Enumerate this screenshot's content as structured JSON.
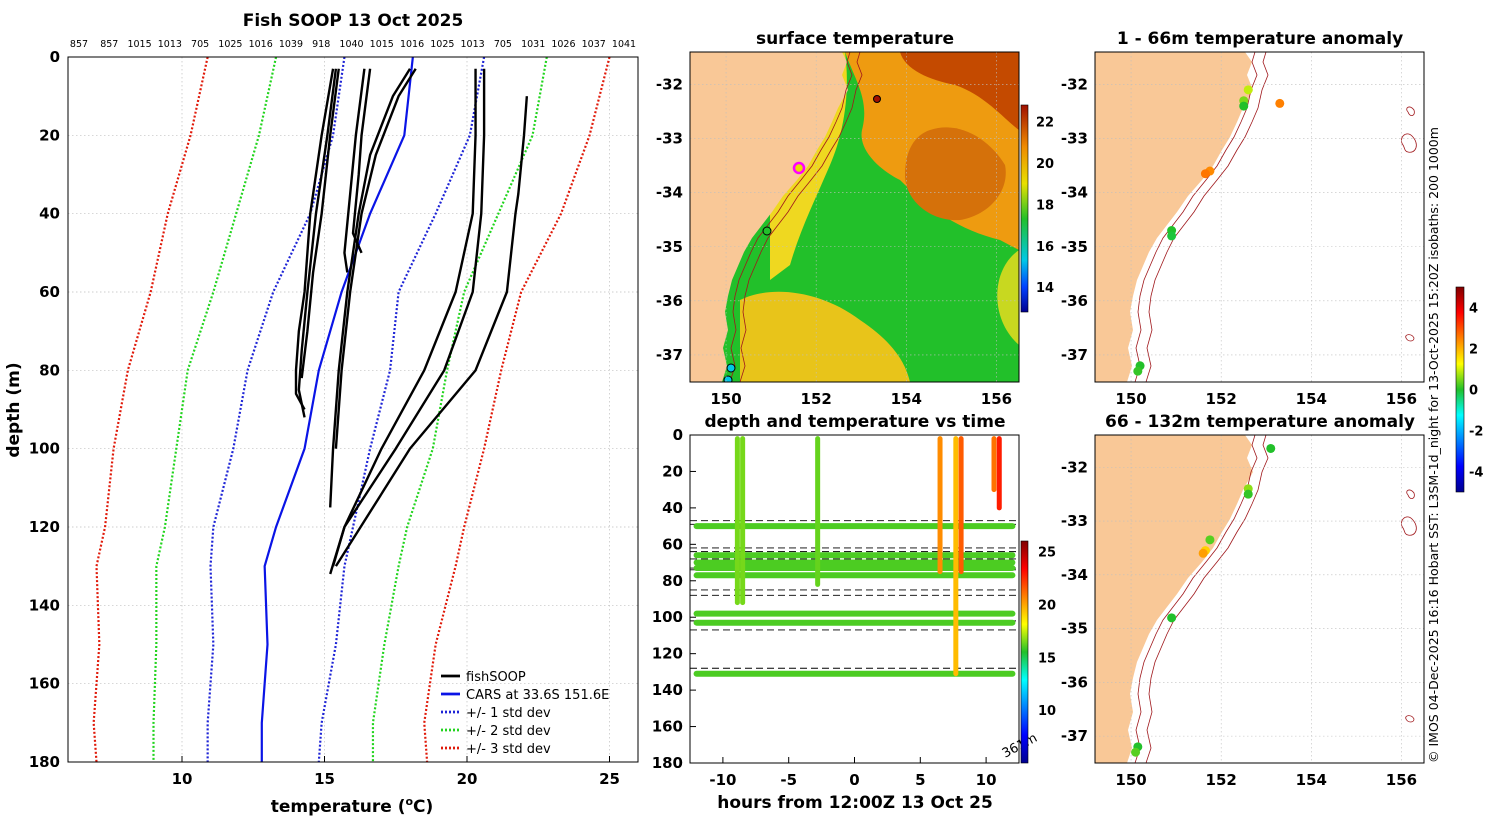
{
  "colors": {
    "land": "#f9c897",
    "axis": "#000000",
    "grid": "#bfbfbf",
    "fishsoop": "#000000",
    "cars": "#0a14e6",
    "std1": "#1e24d6",
    "std2": "#22d41e",
    "std3": "#e01a0a",
    "isobath": "#a0181c"
  },
  "chart_data": [
    {
      "id": "profile",
      "type": "line",
      "title": "Fish SOOP 13 Oct 2025",
      "xlabel": "temperature (°C)",
      "xlabel_main": "temperature (",
      "xlabel_sup": "o",
      "xlabel_end": "C)",
      "ylabel": "depth (m)",
      "xlim": [
        6,
        26
      ],
      "ylim": [
        0,
        180
      ],
      "xticks": [
        "10",
        "15",
        "20",
        "25"
      ],
      "xtick_values": [
        10,
        15,
        20,
        25
      ],
      "yticks": [
        "0",
        "20",
        "40",
        "60",
        "80",
        "100",
        "120",
        "140",
        "160",
        "180"
      ],
      "ytick_values": [
        0,
        20,
        40,
        60,
        80,
        100,
        120,
        140,
        160,
        180
      ],
      "top_ids": [
        "857",
        "857",
        "1015",
        "1013",
        "705",
        "1025",
        "1016",
        "1039",
        "918",
        "1040",
        "1015",
        "1016",
        "1025",
        "1013",
        "705",
        "1031",
        "1026",
        "1037",
        "1041"
      ],
      "legend": [
        {
          "label": "fishSOOP",
          "style": "solid",
          "color": "#000000"
        },
        {
          "label": "CARS at 33.6S 151.6E",
          "style": "solid",
          "color": "#0a14e6"
        },
        {
          "label": "+/- 1 std dev",
          "style": "dotted",
          "color": "#1e24d6"
        },
        {
          "label": "+/- 2 std dev",
          "style": "dotted",
          "color": "#22d41e"
        },
        {
          "label": "+/- 3 std dev",
          "style": "dotted",
          "color": "#e01a0a"
        }
      ],
      "series": [
        {
          "name": "CARS at 33.6S 151.6E",
          "depth": [
            0,
            20,
            40,
            60,
            80,
            100,
            120,
            130,
            150,
            170,
            180
          ],
          "temp": [
            18.1,
            17.8,
            16.6,
            15.6,
            14.8,
            14.3,
            13.3,
            12.9,
            13.0,
            12.8,
            12.8
          ]
        },
        {
          "name": "+1 std",
          "depth": [
            0,
            20,
            40,
            60,
            80,
            100,
            120,
            130,
            150,
            170,
            180
          ],
          "temp": [
            20.6,
            20.1,
            18.9,
            17.6,
            17.3,
            16.6,
            16.0,
            15.7,
            15.4,
            14.9,
            14.8
          ]
        },
        {
          "name": "-1 std",
          "depth": [
            0,
            20,
            40,
            60,
            80,
            100,
            120,
            130,
            150,
            170,
            180
          ],
          "temp": [
            15.7,
            15.3,
            14.5,
            13.2,
            12.3,
            11.8,
            11.1,
            11.0,
            11.1,
            10.9,
            10.9
          ]
        },
        {
          "name": "+2 std",
          "depth": [
            0,
            20,
            40,
            60,
            80,
            100,
            120,
            130,
            150,
            170,
            180
          ],
          "temp": [
            22.8,
            22.3,
            21.1,
            19.9,
            19.3,
            18.8,
            17.9,
            17.6,
            17.1,
            16.7,
            16.7
          ]
        },
        {
          "name": "-2 std",
          "depth": [
            0,
            20,
            40,
            60,
            80,
            100,
            120,
            130,
            150,
            170,
            180
          ],
          "temp": [
            13.3,
            12.7,
            11.9,
            11.1,
            10.2,
            9.8,
            9.4,
            9.1,
            9.1,
            9.0,
            9.0
          ]
        },
        {
          "name": "+3 std",
          "depth": [
            0,
            20,
            40,
            60,
            80,
            100,
            120,
            130,
            150,
            170,
            180
          ],
          "temp": [
            25.0,
            24.3,
            23.3,
            21.9,
            21.2,
            20.6,
            19.9,
            19.6,
            18.9,
            18.5,
            18.6
          ]
        },
        {
          "name": "-3 std",
          "depth": [
            0,
            20,
            40,
            60,
            80,
            100,
            120,
            130,
            150,
            170,
            180
          ],
          "temp": [
            10.9,
            10.3,
            9.5,
            8.9,
            8.1,
            7.6,
            7.3,
            7.0,
            7.1,
            6.9,
            7.0
          ]
        }
      ],
      "fishsoop_profiles": [
        {
          "depth": [
            3,
            20,
            40,
            60,
            70,
            80,
            86,
            90
          ],
          "temp": [
            15.3,
            14.9,
            14.5,
            14.3,
            14.1,
            14.0,
            14.0,
            14.3
          ]
        },
        {
          "depth": [
            3,
            20,
            40,
            60,
            75,
            85,
            92
          ],
          "temp": [
            15.4,
            15.1,
            14.7,
            14.4,
            14.2,
            14.1,
            14.3
          ]
        },
        {
          "depth": [
            3,
            20,
            40,
            55,
            70,
            82
          ],
          "temp": [
            15.5,
            15.2,
            14.9,
            14.6,
            14.4,
            14.2
          ]
        },
        {
          "depth": [
            3,
            20,
            35,
            50,
            55
          ],
          "temp": [
            16.4,
            16.1,
            15.9,
            15.7,
            15.8
          ]
        },
        {
          "depth": [
            3,
            20,
            30,
            45,
            50
          ],
          "temp": [
            16.6,
            16.3,
            16.2,
            16.0,
            16.3
          ]
        },
        {
          "depth": [
            3,
            10,
            20,
            40,
            60,
            80,
            100,
            120,
            132
          ],
          "temp": [
            20.6,
            20.6,
            20.6,
            20.5,
            20.2,
            19.2,
            17.5,
            15.7,
            15.2
          ]
        },
        {
          "depth": [
            3,
            10,
            25,
            40,
            60,
            80,
            100,
            115
          ],
          "temp": [
            18.0,
            17.4,
            16.6,
            16.2,
            15.8,
            15.5,
            15.3,
            15.2
          ]
        },
        {
          "depth": [
            3,
            10,
            25,
            40,
            60,
            80,
            100
          ],
          "temp": [
            18.2,
            17.6,
            16.8,
            16.3,
            15.9,
            15.6,
            15.4
          ]
        },
        {
          "depth": [
            10,
            20,
            35,
            40,
            60,
            80,
            100,
            130
          ],
          "temp": [
            22.1,
            22.0,
            21.8,
            21.7,
            21.4,
            20.3,
            18.0,
            15.4
          ]
        },
        {
          "depth": [
            3,
            20,
            40,
            60,
            80,
            100,
            120,
            130
          ],
          "temp": [
            20.3,
            20.3,
            20.2,
            19.6,
            18.5,
            17.0,
            15.7,
            15.3
          ]
        }
      ]
    },
    {
      "id": "sst",
      "type": "heatmap",
      "title": "surface temperature",
      "xlim": [
        149.2,
        156.5
      ],
      "ylim": [
        -37.5,
        -31.4
      ],
      "xticks": [
        "150",
        "152",
        "154",
        "156"
      ],
      "xtick_values": [
        150,
        152,
        154,
        156
      ],
      "yticks": [
        "-32",
        "-33",
        "-34",
        "-35",
        "-36",
        "-37"
      ],
      "ytick_values": [
        -32,
        -33,
        -34,
        -35,
        -36,
        -37
      ],
      "colorbar": {
        "ticks": [
          "14",
          "16",
          "18",
          "20",
          "22"
        ],
        "tick_values": [
          14,
          16,
          18,
          20,
          22
        ],
        "range": [
          12.8,
          22.8
        ]
      }
    },
    {
      "id": "timedepth",
      "type": "scatter",
      "title": "depth and temperature vs time",
      "xlabel": "hours from 12:00Z 13 Oct 25",
      "xlim": [
        -12.5,
        12.5
      ],
      "ylim": [
        0,
        180
      ],
      "xticks": [
        "-10",
        "-5",
        "0",
        "5",
        "10"
      ],
      "xtick_values": [
        -10,
        -5,
        0,
        5,
        10
      ],
      "yticks": [
        "0",
        "20",
        "40",
        "60",
        "80",
        "100",
        "120",
        "140",
        "160",
        "180"
      ],
      "ytick_values": [
        0,
        20,
        40,
        60,
        80,
        100,
        120,
        140,
        160,
        180
      ],
      "annotation": "361m",
      "colorbar": {
        "ticks": [
          "10",
          "15",
          "20",
          "25"
        ],
        "tick_values": [
          10,
          15,
          20,
          25
        ],
        "range": [
          5,
          26
        ]
      },
      "dashed_depths": [
        47,
        49,
        62,
        64,
        68,
        73,
        74,
        85,
        88,
        102,
        107,
        128
      ],
      "bands": [
        {
          "depth": 50,
          "t0": -12,
          "t1": 12,
          "temp": 16
        },
        {
          "depth": 66,
          "t0": -12,
          "t1": 12,
          "temp": 16
        },
        {
          "depth": 70,
          "t0": -12,
          "t1": 12,
          "temp": 16
        },
        {
          "depth": 73,
          "t0": -12,
          "t1": 12,
          "temp": 16
        },
        {
          "depth": 77,
          "t0": -12,
          "t1": 12,
          "temp": 16
        },
        {
          "depth": 98,
          "t0": -12,
          "t1": 12,
          "temp": 16
        },
        {
          "depth": 103,
          "t0": -12,
          "t1": 12,
          "temp": 16
        },
        {
          "depth": 131,
          "t0": -12,
          "t1": 12,
          "temp": 16
        }
      ],
      "casts": [
        {
          "time": -8.9,
          "d0": 2,
          "d1": 92,
          "temp": 16.5
        },
        {
          "time": -8.5,
          "d0": 2,
          "d1": 92,
          "temp": 16.5
        },
        {
          "time": -2.8,
          "d0": 2,
          "d1": 82,
          "temp": 16.3
        },
        {
          "time": 6.5,
          "d0": 2,
          "d1": 75,
          "temp": 20.5
        },
        {
          "time": 7.7,
          "d0": 2,
          "d1": 131,
          "temp": 19.5
        },
        {
          "time": 8.1,
          "d0": 2,
          "d1": 75,
          "temp": 21.5
        },
        {
          "time": 10.6,
          "d0": 2,
          "d1": 30,
          "temp": 21.0
        },
        {
          "time": 11.0,
          "d0": 2,
          "d1": 40,
          "temp": 22.8
        }
      ]
    },
    {
      "id": "anom1",
      "type": "scatter",
      "title": "1 - 66m temperature anomaly",
      "xlim": [
        149.2,
        156.5
      ],
      "ylim": [
        -37.5,
        -31.4
      ],
      "xticks": [
        "150",
        "152",
        "154",
        "156"
      ],
      "xtick_values": [
        150,
        152,
        154,
        156
      ],
      "yticks": [
        "-32",
        "-33",
        "-34",
        "-35",
        "-36",
        "-37"
      ],
      "ytick_values": [
        -32,
        -33,
        -34,
        -35,
        -36,
        -37
      ],
      "points": [
        {
          "lon": 152.6,
          "lat": -32.1,
          "anom": 0.9
        },
        {
          "lon": 152.5,
          "lat": -32.3,
          "anom": 0.5
        },
        {
          "lon": 152.5,
          "lat": -32.4,
          "anom": 0.0
        },
        {
          "lon": 153.3,
          "lat": -32.35,
          "anom": 2.5
        },
        {
          "lon": 151.75,
          "lat": -33.6,
          "anom": 2.4
        },
        {
          "lon": 151.65,
          "lat": -33.65,
          "anom": 2.6
        },
        {
          "lon": 150.9,
          "lat": -34.7,
          "anom": 0.0
        },
        {
          "lon": 150.9,
          "lat": -34.8,
          "anom": -0.1
        },
        {
          "lon": 150.2,
          "lat": -37.2,
          "anom": 0.0
        },
        {
          "lon": 150.15,
          "lat": -37.3,
          "anom": 0.1
        }
      ]
    },
    {
      "id": "anom2",
      "type": "scatter",
      "title": "66 - 132m temperature anomaly",
      "xlim": [
        149.2,
        156.5
      ],
      "ylim": [
        -37.5,
        -31.4
      ],
      "xticks": [
        "150",
        "152",
        "154",
        "156"
      ],
      "xtick_values": [
        150,
        152,
        154,
        156
      ],
      "yticks": [
        "-32",
        "-33",
        "-34",
        "-35",
        "-36",
        "-37"
      ],
      "ytick_values": [
        -32,
        -33,
        -34,
        -35,
        -36,
        -37
      ],
      "points": [
        {
          "lon": 153.1,
          "lat": -31.65,
          "anom": 0.0
        },
        {
          "lon": 152.6,
          "lat": -32.4,
          "anom": 0.6
        },
        {
          "lon": 152.6,
          "lat": -32.5,
          "anom": 0.1
        },
        {
          "lon": 151.75,
          "lat": -33.35,
          "anom": 0.3
        },
        {
          "lon": 151.65,
          "lat": -33.55,
          "anom": 1.7
        },
        {
          "lon": 151.6,
          "lat": -33.6,
          "anom": 2.2
        },
        {
          "lon": 150.9,
          "lat": -34.8,
          "anom": 0.0
        },
        {
          "lon": 150.15,
          "lat": -37.2,
          "anom": 0.0
        },
        {
          "lon": 150.1,
          "lat": -37.3,
          "anom": 0.3
        }
      ]
    },
    {
      "id": "anomaly_colorbar",
      "type": "colorbar",
      "ticks": [
        "-4",
        "-2",
        "0",
        "2",
        "4"
      ],
      "tick_values": [
        -4,
        -2,
        0,
        2,
        4
      ],
      "range": [
        -5,
        5
      ]
    }
  ],
  "credit": "© IMOS 04-Dec-2025 16:16 Hobart SST: L3SM-1d_night for 13-Oct-2025 15:20Z isobaths: 200  1000m"
}
